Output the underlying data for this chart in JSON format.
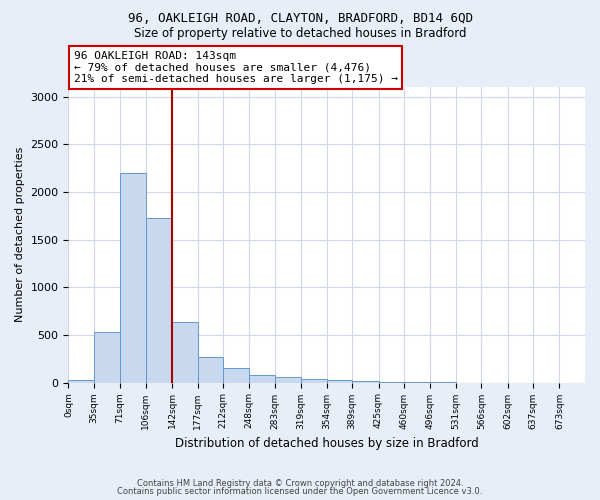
{
  "title1": "96, OAKLEIGH ROAD, CLAYTON, BRADFORD, BD14 6QD",
  "title2": "Size of property relative to detached houses in Bradford",
  "xlabel": "Distribution of detached houses by size in Bradford",
  "ylabel": "Number of detached properties",
  "bin_edges": [
    0,
    35,
    71,
    106,
    142,
    177,
    212,
    248,
    283,
    319,
    354,
    389,
    425,
    460,
    496,
    531,
    566,
    602,
    637,
    673,
    708
  ],
  "bar_heights": [
    30,
    530,
    2200,
    1730,
    640,
    270,
    150,
    80,
    60,
    40,
    25,
    15,
    10,
    5,
    3,
    0,
    0,
    0,
    0,
    0
  ],
  "bar_color": "#c8d8ee",
  "bar_edge_color": "#6699cc",
  "vline_x": 142,
  "vline_color": "#aa0000",
  "annotation_title": "96 OAKLEIGH ROAD: 143sqm",
  "annotation_line1": "← 79% of detached houses are smaller (4,476)",
  "annotation_line2": "21% of semi-detached houses are larger (1,175) →",
  "annotation_box_facecolor": "#ffffff",
  "annotation_box_edgecolor": "#cc0000",
  "ylim": [
    0,
    3100
  ],
  "yticks": [
    0,
    500,
    1000,
    1500,
    2000,
    2500,
    3000
  ],
  "bg_color": "#e8eef8",
  "plot_bg_color": "#ffffff",
  "grid_color": "#d0d8e8",
  "footer_line1": "Contains HM Land Registry data © Crown copyright and database right 2024.",
  "footer_line2": "Contains public sector information licensed under the Open Government Licence v3.0."
}
